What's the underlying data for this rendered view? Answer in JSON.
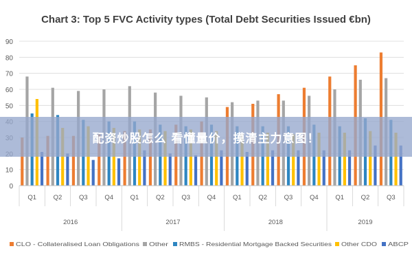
{
  "colors": {
    "background": "#ffffff",
    "grid": "#d9d9d9",
    "axis_text": "#595959",
    "CLO": "#ed7d31",
    "Other": "#a5a5a5",
    "RMBS": "#2e86c1",
    "OtherCDO": "#ffc000",
    "ABCP": "#4472c4",
    "banner": "#96a8cd"
  },
  "overlay_banner": {
    "text": "配资炒股怎么 看懂量价，摸清主力意图！"
  },
  "chart_data": {
    "type": "bar",
    "title": "Chart 3: Top 5 FVC Activity types (Total Debt Securities Issued €bn)",
    "xlabel": "",
    "ylabel": "",
    "ylim": [
      0,
      90
    ],
    "yticks": [
      0,
      10,
      20,
      30,
      40,
      50,
      60,
      70,
      80,
      90
    ],
    "grid": true,
    "legend_position": "bottom",
    "categories": [
      "Q1",
      "Q2",
      "Q3",
      "Q4",
      "Q1",
      "Q2",
      "Q3",
      "Q4",
      "Q1",
      "Q2",
      "Q3",
      "Q4",
      "Q1",
      "Q2",
      "Q3"
    ],
    "groups": [
      {
        "label": "2016",
        "count": 4
      },
      {
        "label": "2017",
        "count": 4
      },
      {
        "label": "2018",
        "count": 4
      },
      {
        "label": "2019",
        "count": 3
      }
    ],
    "series": [
      {
        "name": "CLO - Collateralised Loan Obligations",
        "color_key": "CLO",
        "values": [
          30,
          31,
          31,
          32,
          34,
          35,
          38,
          40,
          49,
          51,
          57,
          61,
          68,
          75,
          83
        ]
      },
      {
        "name": "Other",
        "color_key": "Other",
        "values": [
          68,
          61,
          59,
          60,
          62,
          58,
          56,
          55,
          52,
          53,
          53,
          56,
          60,
          66,
          67
        ]
      },
      {
        "name": "RMBS - Residential Mortgage Backed Securities",
        "color_key": "RMBS",
        "values": [
          45,
          44,
          41,
          40,
          40,
          38,
          37,
          38,
          37,
          37,
          37,
          38,
          37,
          42,
          41
        ]
      },
      {
        "name": "Other CDO",
        "color_key": "OtherCDO",
        "values": [
          54,
          36,
          37,
          36,
          35,
          34,
          35,
          34,
          32,
          33,
          32,
          33,
          33,
          34,
          33
        ]
      },
      {
        "name": "ABCP",
        "color_key": "ABCP",
        "values": [
          21,
          20,
          16,
          17,
          22,
          20,
          19,
          22,
          21,
          22,
          22,
          22,
          22,
          25,
          25
        ]
      }
    ]
  }
}
